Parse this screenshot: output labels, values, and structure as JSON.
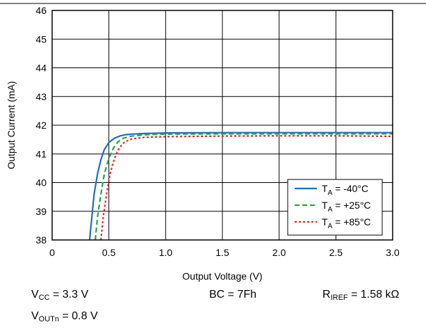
{
  "chart_data": {
    "type": "line",
    "xlabel": "Output Voltage (V)",
    "ylabel": "Output Current (mA)",
    "xlim": [
      0,
      3.0
    ],
    "ylim": [
      38,
      46
    ],
    "xticks": [
      "0",
      "0.5",
      "1.0",
      "1.5",
      "2.0",
      "2.5",
      "3.0"
    ],
    "yticks": [
      "38",
      "39",
      "40",
      "41",
      "42",
      "43",
      "44",
      "45",
      "46"
    ],
    "grid": true,
    "legend_position": "bottom-right",
    "series": [
      {
        "name": "T_A = -40°C",
        "label_main": "T",
        "label_sub": "A",
        "label_rest": " = -40°C",
        "color": "#1f6fb4",
        "style": "solid",
        "points": [
          [
            0.33,
            38.0
          ],
          [
            0.35,
            38.8
          ],
          [
            0.37,
            39.6
          ],
          [
            0.4,
            40.3
          ],
          [
            0.43,
            40.8
          ],
          [
            0.46,
            41.15
          ],
          [
            0.5,
            41.4
          ],
          [
            0.55,
            41.55
          ],
          [
            0.6,
            41.63
          ],
          [
            0.65,
            41.67
          ],
          [
            0.7,
            41.69
          ],
          [
            0.8,
            41.71
          ],
          [
            0.9,
            41.72
          ],
          [
            1.0,
            41.73
          ],
          [
            1.5,
            41.74
          ],
          [
            2.0,
            41.74
          ],
          [
            2.5,
            41.74
          ],
          [
            3.0,
            41.74
          ]
        ]
      },
      {
        "name": "T_A = +25°C",
        "label_main": "T",
        "label_sub": "A",
        "label_rest": " = +25°C",
        "color": "#2e9e49",
        "style": "dashed",
        "points": [
          [
            0.38,
            38.0
          ],
          [
            0.4,
            38.8
          ],
          [
            0.43,
            39.6
          ],
          [
            0.46,
            40.3
          ],
          [
            0.5,
            40.85
          ],
          [
            0.54,
            41.2
          ],
          [
            0.58,
            41.42
          ],
          [
            0.63,
            41.55
          ],
          [
            0.7,
            41.62
          ],
          [
            0.8,
            41.66
          ],
          [
            0.9,
            41.68
          ],
          [
            1.0,
            41.69
          ],
          [
            1.5,
            41.7
          ],
          [
            2.0,
            41.7
          ],
          [
            2.5,
            41.7
          ],
          [
            3.0,
            41.7
          ]
        ]
      },
      {
        "name": "T_A = +85°C",
        "label_main": "T",
        "label_sub": "A",
        "label_rest": " = +85°C",
        "color": "#e0262a",
        "style": "dotted",
        "points": [
          [
            0.43,
            38.0
          ],
          [
            0.45,
            38.8
          ],
          [
            0.48,
            39.6
          ],
          [
            0.51,
            40.3
          ],
          [
            0.55,
            40.85
          ],
          [
            0.59,
            41.2
          ],
          [
            0.64,
            41.42
          ],
          [
            0.7,
            41.52
          ],
          [
            0.8,
            41.57
          ],
          [
            0.9,
            41.59
          ],
          [
            1.0,
            41.6
          ],
          [
            1.5,
            41.62
          ],
          [
            2.0,
            41.63
          ],
          [
            2.5,
            41.63
          ],
          [
            2.8,
            41.62
          ],
          [
            3.0,
            41.61
          ]
        ]
      }
    ]
  },
  "conditions": {
    "vcc_main": "V",
    "vcc_sub": "CC",
    "vcc_rest": " = 3.3 V",
    "bc": "BC = 7Fh",
    "riref_main": "R",
    "riref_sub": "IREF",
    "riref_rest": " = 1.58 kΩ",
    "vout_main": "V",
    "vout_sub": "OUTn",
    "vout_rest": " = 0.8 V"
  }
}
